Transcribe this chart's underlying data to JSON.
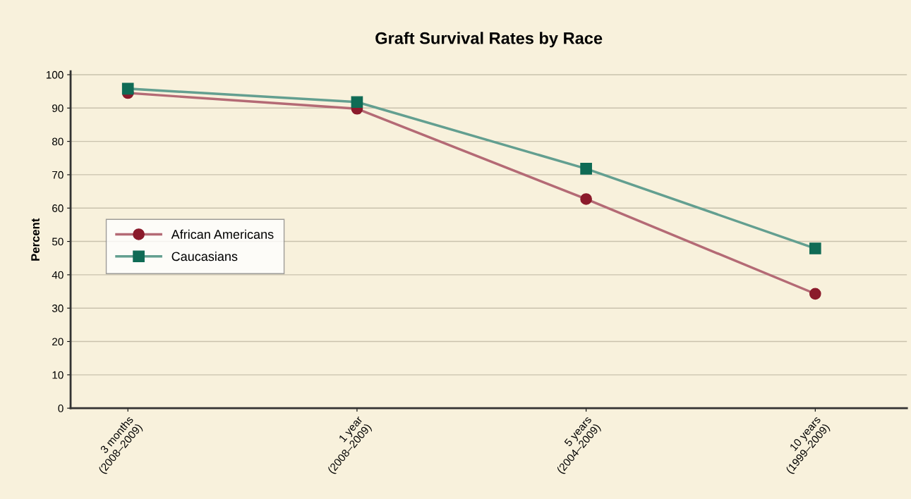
{
  "chart_data": {
    "type": "line",
    "title": "Graft Survival Rates by Race",
    "ylabel": "Percent",
    "categories": [
      "3 months\n(2008–2009)",
      "1 year\n(2008–2009)",
      "5 years\n(2004–2009)",
      "10 years\n(1999–2009)"
    ],
    "series": [
      {
        "name": "African Americans",
        "color": "#8b1a2b",
        "marker": "circle",
        "values": [
          94.5,
          89.8,
          62.7,
          34.3
        ]
      },
      {
        "name": "Caucasians",
        "color": "#0f6b55",
        "marker": "square",
        "values": [
          95.8,
          91.8,
          71.8,
          47.9
        ]
      }
    ],
    "ylim": [
      0,
      101
    ],
    "yticks": [
      0,
      10,
      20,
      30,
      40,
      50,
      60,
      70,
      80,
      90,
      100
    ],
    "grid": "y",
    "legend": "center left",
    "line_style": "solid"
  }
}
